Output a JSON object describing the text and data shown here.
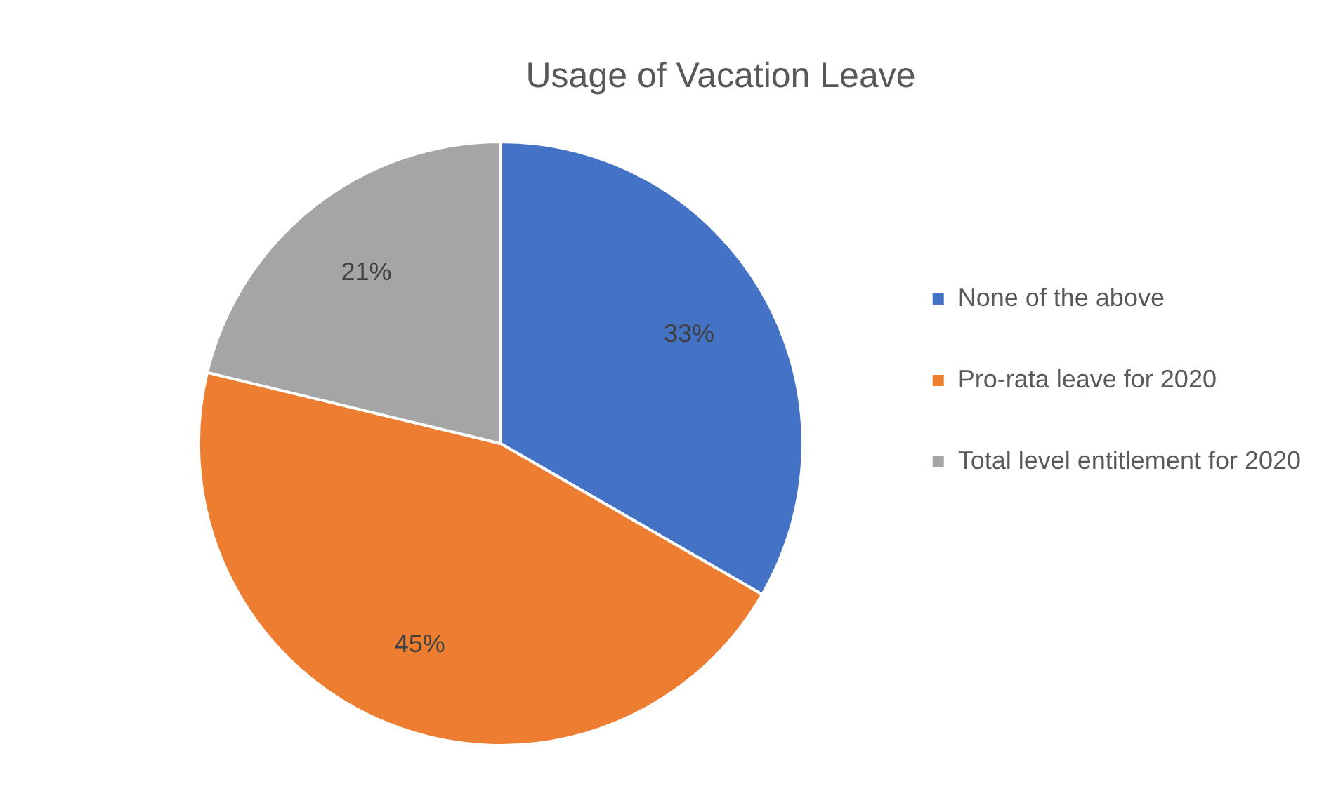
{
  "chart_data": {
    "type": "pie",
    "title": "Usage of Vacation Leave",
    "categories": [
      "None of the above",
      "Pro-rata leave for 2020",
      "Total level entitlement for 2020"
    ],
    "values": [
      33,
      45,
      21
    ],
    "colors": [
      "#4472c4",
      "#ed7d31",
      "#a5a5a5"
    ],
    "value_labels": [
      "33%",
      "45%",
      "21%"
    ],
    "legend": "right"
  }
}
